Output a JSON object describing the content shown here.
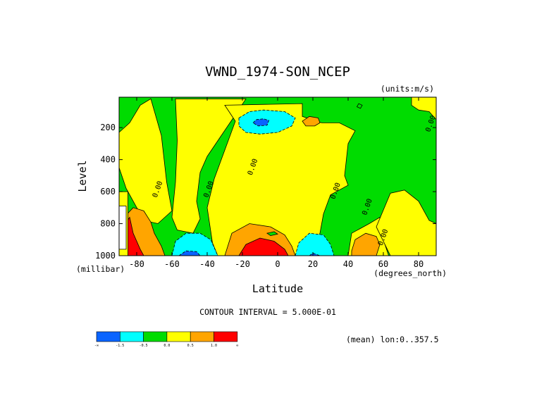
{
  "chart_data": {
    "type": "heatmap",
    "title": "VWND_1974-SON_NCEP",
    "units": "(units:m/s)",
    "xlabel": "Latitude",
    "x_units": "(degrees_north)",
    "ylabel": "Level",
    "y_units": "(millibar)",
    "xlim": [
      -90,
      90
    ],
    "ylim": [
      1000,
      10
    ],
    "y_reversed": true,
    "x_ticks": [
      {
        "value": -80,
        "label": "-80"
      },
      {
        "value": -60,
        "label": "-60"
      },
      {
        "value": -40,
        "label": "-40"
      },
      {
        "value": -20,
        "label": "-20"
      },
      {
        "value": 0,
        "label": "0"
      },
      {
        "value": 20,
        "label": "20"
      },
      {
        "value": 40,
        "label": "40"
      },
      {
        "value": 60,
        "label": "60"
      },
      {
        "value": 80,
        "label": "80"
      }
    ],
    "y_ticks": [
      {
        "value": 200,
        "label": "200"
      },
      {
        "value": 400,
        "label": "400"
      },
      {
        "value": 600,
        "label": "600"
      },
      {
        "value": 800,
        "label": "800"
      },
      {
        "value": 1000,
        "label": "1000"
      }
    ],
    "contour_interval": "CONTOUR INTERVAL = 5.000E-01",
    "mean_note": "(mean) lon:0..357.5",
    "contour_labels": [
      {
        "text": "0.00",
        "lat": -67,
        "lev": 590
      },
      {
        "text": "0.00",
        "lat": -38,
        "lev": 590
      },
      {
        "text": "0.00",
        "lat": -13,
        "lev": 450
      },
      {
        "text": "0.00",
        "lat": 34,
        "lev": 600
      },
      {
        "text": "0.00",
        "lat": 52,
        "lev": 700
      },
      {
        "text": "0.00",
        "lat": 61,
        "lev": 890
      },
      {
        "text": "0.00",
        "lat": 88,
        "lev": 180
      }
    ],
    "color_levels": [
      {
        "color": "#0a64ff",
        "range": "< -1.5"
      },
      {
        "color": "#00ffff",
        "range": "-1.5 to -0.5"
      },
      {
        "color": "#00dc00",
        "range": "-0.5 to 0.0"
      },
      {
        "color": "#ffff00",
        "range": "0.0 to 0.5"
      },
      {
        "color": "#ffa500",
        "range": "0.5 to 1.0"
      },
      {
        "color": "#ff0000",
        "range": "> 1.0"
      }
    ],
    "colorbar_labels": [
      "-∞",
      "-1.5",
      "-0.5",
      "0.0",
      "0.5",
      "1.0",
      "∞"
    ],
    "regions": [
      {
        "fill": "#00dc00",
        "pts": [
          [
            -90,
            10
          ],
          [
            90,
            10
          ],
          [
            90,
            1000
          ],
          [
            -90,
            1000
          ]
        ]
      },
      {
        "fill": "#ffff00",
        "pts": [
          [
            -90,
            230
          ],
          [
            -84,
            170
          ],
          [
            -78,
            60
          ],
          [
            -72,
            20
          ],
          [
            -66,
            250
          ],
          [
            -63,
            540
          ],
          [
            -60,
            720
          ],
          [
            -68,
            800
          ],
          [
            -76,
            780
          ],
          [
            -86,
            580
          ],
          [
            -90,
            450
          ]
        ]
      },
      {
        "fill": "#ffff00",
        "pts": [
          [
            -58,
            20
          ],
          [
            -18,
            20
          ],
          [
            -24,
            120
          ],
          [
            -32,
            250
          ],
          [
            -40,
            380
          ],
          [
            -44,
            480
          ],
          [
            -46,
            660
          ],
          [
            -44,
            770
          ],
          [
            -48,
            860
          ],
          [
            -57,
            840
          ],
          [
            -60,
            760
          ],
          [
            -58,
            540
          ],
          [
            -57,
            280
          ]
        ]
      },
      {
        "fill": "#ffff00",
        "pts": [
          [
            -30,
            60
          ],
          [
            14,
            50
          ],
          [
            14,
            130
          ],
          [
            25,
            170
          ],
          [
            35,
            170
          ],
          [
            44,
            220
          ],
          [
            40,
            300
          ],
          [
            38,
            500
          ],
          [
            40,
            560
          ],
          [
            30,
            620
          ],
          [
            26,
            740
          ],
          [
            24,
            860
          ],
          [
            20,
            960
          ],
          [
            16,
            1000
          ],
          [
            -34,
            1000
          ],
          [
            -37,
            920
          ],
          [
            -40,
            700
          ],
          [
            -36,
            520
          ],
          [
            -28,
            280
          ],
          [
            -24,
            160
          ]
        ]
      },
      {
        "fill": "#ffff00",
        "pts": [
          [
            42,
            860
          ],
          [
            52,
            800
          ],
          [
            58,
            760
          ],
          [
            60,
            900
          ],
          [
            63,
            1000
          ],
          [
            40,
            1000
          ]
        ]
      },
      {
        "fill": "#ffff00",
        "pts": [
          [
            56,
            820
          ],
          [
            64,
            610
          ],
          [
            72,
            590
          ],
          [
            80,
            660
          ],
          [
            86,
            780
          ],
          [
            90,
            800
          ],
          [
            90,
            1000
          ],
          [
            64,
            1000
          ]
        ]
      },
      {
        "fill": "#ffff00",
        "pts": [
          [
            76,
            10
          ],
          [
            90,
            10
          ],
          [
            90,
            150
          ],
          [
            86,
            100
          ],
          [
            80,
            90
          ],
          [
            76,
            60
          ]
        ]
      },
      {
        "fill": "#ffff00",
        "pts": [
          [
            -90,
            650
          ],
          [
            -86,
            620
          ],
          [
            -86,
            1000
          ],
          [
            -90,
            1000
          ]
        ]
      },
      {
        "fill": "#ffa500",
        "pts": [
          [
            -88,
            770
          ],
          [
            -82,
            700
          ],
          [
            -76,
            720
          ],
          [
            -72,
            790
          ],
          [
            -70,
            860
          ],
          [
            -66,
            940
          ],
          [
            -64,
            1000
          ],
          [
            -88,
            1000
          ]
        ]
      },
      {
        "fill": "#ff0000",
        "pts": [
          [
            -88,
            820
          ],
          [
            -84,
            760
          ],
          [
            -82,
            860
          ],
          [
            -78,
            960
          ],
          [
            -76,
            1000
          ],
          [
            -88,
            1000
          ]
        ]
      },
      {
        "fill": "#ffff00",
        "pts": [
          [
            -90,
            600
          ],
          [
            -85,
            600
          ],
          [
            -85,
            1000
          ],
          [
            -90,
            1000
          ]
        ]
      },
      {
        "fill": "#ffffff",
        "pts": [
          [
            -90,
            690
          ],
          [
            -86,
            690
          ],
          [
            -86,
            960
          ],
          [
            -90,
            960
          ]
        ]
      },
      {
        "fill": "#ffa500",
        "pts": [
          [
            -30,
            1000
          ],
          [
            -26,
            860
          ],
          [
            -16,
            800
          ],
          [
            -4,
            820
          ],
          [
            4,
            870
          ],
          [
            8,
            940
          ],
          [
            10,
            1000
          ]
        ]
      },
      {
        "fill": "#ff0000",
        "pts": [
          [
            -22,
            1000
          ],
          [
            -18,
            930
          ],
          [
            -10,
            890
          ],
          [
            -2,
            910
          ],
          [
            4,
            960
          ],
          [
            6,
            1000
          ]
        ]
      },
      {
        "fill": "#00ffff",
        "pts": [
          [
            -60,
            1000
          ],
          [
            -58,
            910
          ],
          [
            -52,
            860
          ],
          [
            -44,
            860
          ],
          [
            -38,
            900
          ],
          [
            -36,
            950
          ],
          [
            -34,
            1000
          ]
        ]
      },
      {
        "fill": "#0a64ff",
        "pts": [
          [
            -56,
            1000
          ],
          [
            -52,
            970
          ],
          [
            -46,
            975
          ],
          [
            -44,
            1000
          ]
        ]
      },
      {
        "fill": "#00ffff",
        "pts": [
          [
            10,
            1000
          ],
          [
            12,
            920
          ],
          [
            18,
            860
          ],
          [
            26,
            870
          ],
          [
            30,
            930
          ],
          [
            32,
            1000
          ]
        ]
      },
      {
        "fill": "#0a64ff",
        "pts": [
          [
            18,
            1000
          ],
          [
            20,
            985
          ],
          [
            24,
            1000
          ]
        ]
      },
      {
        "fill": "#00ffff",
        "pts": [
          [
            -22,
            140
          ],
          [
            -16,
            100
          ],
          [
            -8,
            90
          ],
          [
            4,
            100
          ],
          [
            10,
            140
          ],
          [
            8,
            190
          ],
          [
            0,
            230
          ],
          [
            -10,
            240
          ],
          [
            -18,
            230
          ],
          [
            -22,
            190
          ]
        ]
      },
      {
        "fill": "#0a64ff",
        "pts": [
          [
            -14,
            170
          ],
          [
            -12,
            150
          ],
          [
            -8,
            145
          ],
          [
            -5,
            155
          ],
          [
            -6,
            185
          ],
          [
            -11,
            190
          ]
        ]
      },
      {
        "fill": "#ffa500",
        "pts": [
          [
            14,
            160
          ],
          [
            18,
            130
          ],
          [
            23,
            140
          ],
          [
            24,
            170
          ],
          [
            21,
            190
          ],
          [
            16,
            190
          ]
        ]
      },
      {
        "fill": "#ffa500",
        "pts": [
          [
            42,
            970
          ],
          [
            44,
            900
          ],
          [
            50,
            860
          ],
          [
            56,
            880
          ],
          [
            58,
            930
          ],
          [
            56,
            1000
          ],
          [
            42,
            1000
          ]
        ]
      },
      {
        "fill": "#00dc00",
        "pts": [
          [
            -6,
            860
          ],
          [
            -2,
            850
          ],
          [
            0,
            865
          ],
          [
            -4,
            875
          ]
        ]
      },
      {
        "fill": "#00dc00",
        "pts": [
          [
            46,
            50
          ],
          [
            48,
            60
          ],
          [
            47,
            80
          ],
          [
            45,
            70
          ]
        ]
      }
    ]
  }
}
